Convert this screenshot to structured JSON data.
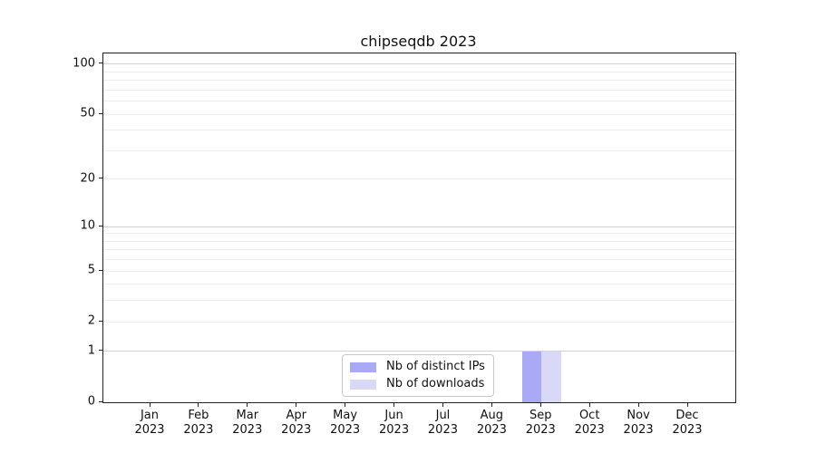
{
  "chart_data": {
    "type": "bar",
    "title": "chipseqdb 2023",
    "categories": [
      "Jan",
      "Feb",
      "Mar",
      "Apr",
      "May",
      "Jun",
      "Jul",
      "Aug",
      "Sep",
      "Oct",
      "Nov",
      "Dec"
    ],
    "category_year": "2023",
    "series": [
      {
        "name": "Nb of distinct IPs",
        "color": "#a9a9f5",
        "values": [
          0,
          0,
          0,
          0,
          0,
          0,
          0,
          0,
          1,
          0,
          0,
          0
        ]
      },
      {
        "name": "Nb of downloads",
        "color": "#d9d9f7",
        "values": [
          0,
          0,
          0,
          0,
          0,
          0,
          0,
          0,
          1,
          0,
          0,
          0
        ]
      }
    ],
    "y_axis": {
      "scale": "log1p",
      "ticks": [
        0,
        1,
        2,
        5,
        10,
        20,
        50,
        100
      ],
      "major_gridlines": [
        1,
        10,
        100
      ],
      "minor_gridlines": [
        2,
        3,
        4,
        5,
        6,
        7,
        8,
        9,
        20,
        30,
        40,
        50,
        60,
        70,
        80,
        90
      ],
      "range": [
        0,
        116
      ]
    },
    "x_axis": {
      "label_format": "month over year",
      "ticks_per_category": true
    },
    "legend": {
      "position": "lower center"
    },
    "grid": "horizontal only",
    "colors": {
      "grid_major": "#d2d2d2",
      "grid_minor": "#ededed",
      "axis": "#222222",
      "text": "#111111",
      "background": "#ffffff"
    }
  }
}
